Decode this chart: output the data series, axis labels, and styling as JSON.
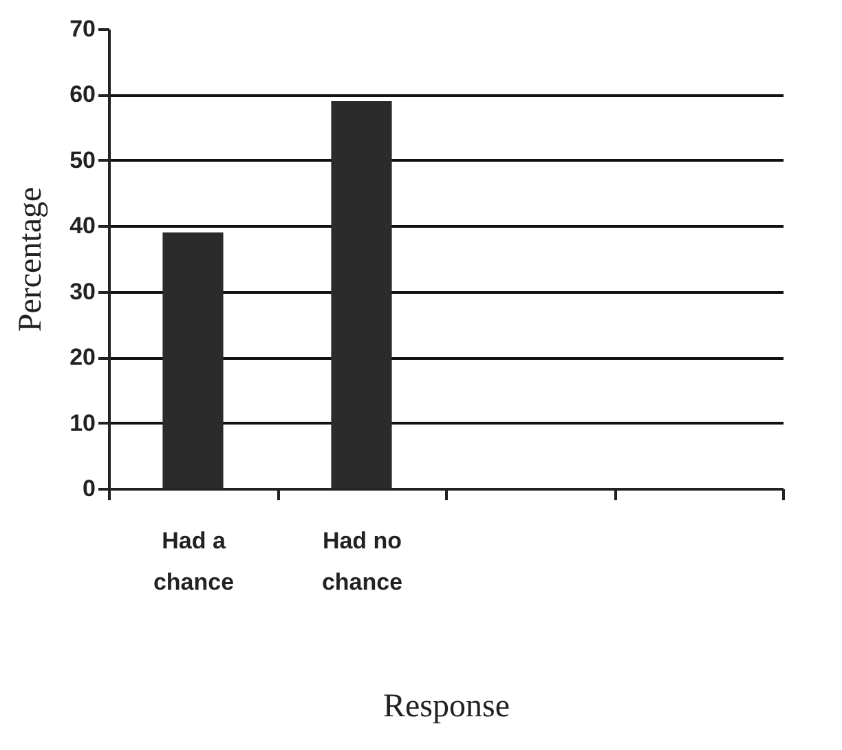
{
  "chart_data": {
    "type": "bar",
    "xlabel": "Response",
    "ylabel": "Percentage",
    "categories": [
      "Had a chance",
      "Had no chance",
      null,
      null
    ],
    "values": [
      39,
      59,
      null,
      null
    ],
    "color": "#2b2b2b",
    "ylim": [
      0,
      70
    ],
    "yticks": [
      0,
      10,
      20,
      30,
      40,
      50,
      60,
      70
    ],
    "grid": "y"
  }
}
